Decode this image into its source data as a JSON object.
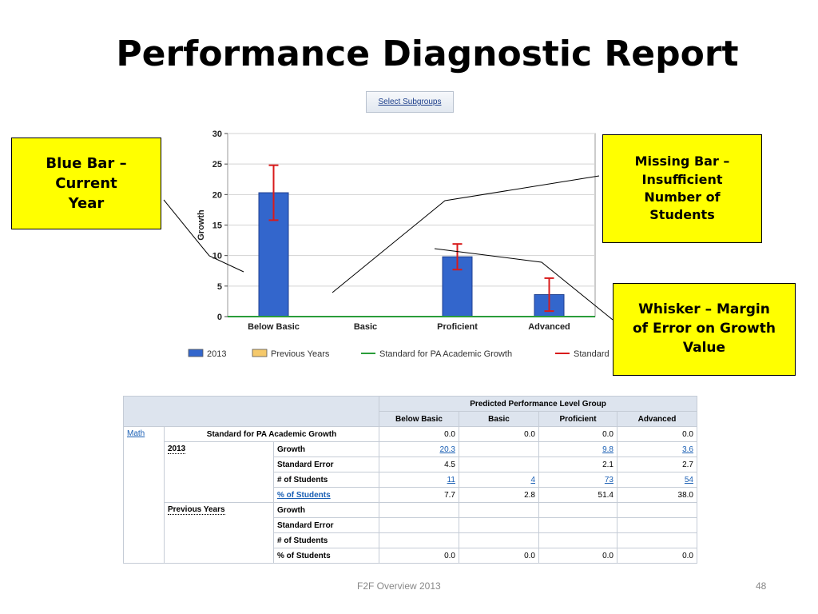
{
  "title": "Performance Diagnostic Report",
  "select_subgroups": "Select Subgroups",
  "chart_data": {
    "type": "bar",
    "categories": [
      "Below Basic",
      "Basic",
      "Proficient",
      "Advanced"
    ],
    "series": [
      {
        "name": "2013",
        "values": [
          20.3,
          null,
          9.8,
          3.6
        ],
        "error_plus_minus": [
          4.5,
          null,
          2.1,
          2.7
        ],
        "color": "#3366cc"
      },
      {
        "name": "Previous Years",
        "values": [
          null,
          null,
          null,
          null
        ],
        "color": "#f5c96b"
      },
      {
        "name": "Standard for PA Academic Growth",
        "values": [
          0.0,
          0.0,
          0.0,
          0.0
        ],
        "color": "#2a9d3a"
      },
      {
        "name": "Standard",
        "color": "#d81b1b"
      }
    ],
    "ylabel": "Growth",
    "ylim": [
      0,
      30
    ],
    "yticks": [
      0,
      5,
      10,
      15,
      20,
      25,
      30
    ],
    "grid": true,
    "legend": "bottom"
  },
  "callouts": {
    "blue_bar": "Blue Bar –\nCurrent\nYear",
    "missing_bar": "Missing Bar –\nInsufficient\nNumber of\nStudents",
    "whisker": "Whisker – Margin\nof Error on Growth\nValue"
  },
  "table": {
    "group_header": "Predicted Performance Level Group",
    "columns": [
      "Below Basic",
      "Basic",
      "Proficient",
      "Advanced"
    ],
    "subject": "Math",
    "standard_row": {
      "label": "Standard for PA Academic Growth",
      "values": [
        "0.0",
        "0.0",
        "0.0",
        "0.0"
      ]
    },
    "year_2013": {
      "label": "2013",
      "rows": [
        {
          "label": "Growth",
          "values": [
            "20.3",
            "",
            "9.8",
            "3.6"
          ]
        },
        {
          "label": "Standard Error",
          "values": [
            "4.5",
            "",
            "2.1",
            "2.7"
          ]
        },
        {
          "label": "# of Students",
          "values": [
            "11",
            "4",
            "73",
            "54"
          ]
        },
        {
          "label": "% of Students",
          "values": [
            "7.7",
            "2.8",
            "51.4",
            "38.0"
          ]
        }
      ]
    },
    "previous_years": {
      "label": "Previous Years",
      "rows": [
        {
          "label": "Growth",
          "values": [
            "",
            "",
            "",
            ""
          ]
        },
        {
          "label": "Standard Error",
          "values": [
            "",
            "",
            "",
            ""
          ]
        },
        {
          "label": "# of Students",
          "values": [
            "",
            "",
            "",
            ""
          ]
        },
        {
          "label": "% of Students",
          "values": [
            "0.0",
            "0.0",
            "0.0",
            "0.0"
          ]
        }
      ]
    }
  },
  "footer": "F2F Overview 2013",
  "page_number": "48"
}
